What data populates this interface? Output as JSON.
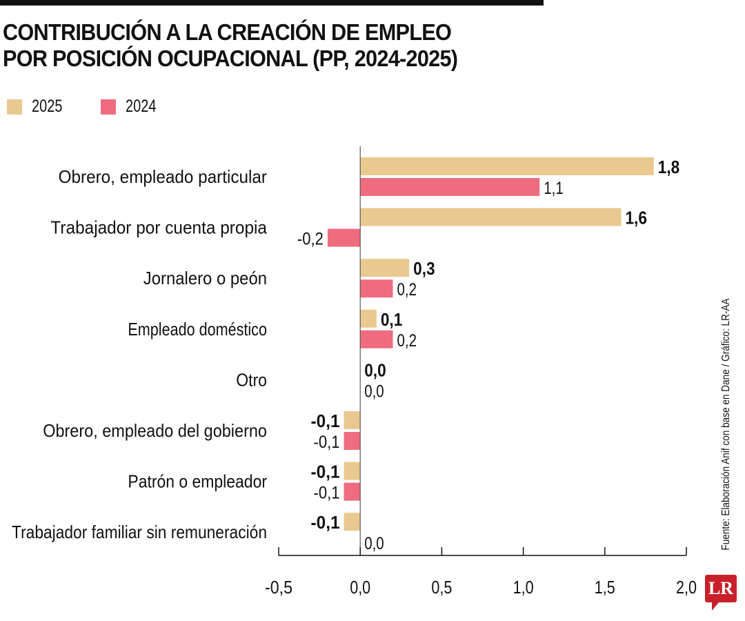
{
  "chart_data": {
    "type": "bar",
    "orientation": "horizontal",
    "title": "CONTRIBUCIÓN A LA CREACIÓN DE EMPLEO POR POSICIÓN OCUPACIONAL (PP, 2024-2025)",
    "title_lines": [
      "CONTRIBUCIÓN A LA CREACIÓN DE EMPLEO",
      "POR POSICIÓN OCUPACIONAL (PP, 2024-2025)"
    ],
    "categories": [
      "Obrero, empleado particular",
      "Trabajador por cuenta propia",
      "Jornalero o peón",
      "Empleado doméstico",
      "Otro",
      "Obrero, empleado del gobierno",
      "Patrón o empleador",
      "Trabajador familiar sin remuneración"
    ],
    "series": [
      {
        "name": "2025",
        "color": "#E9C98F",
        "values": [
          1.8,
          1.6,
          0.3,
          0.1,
          0.0,
          -0.1,
          -0.1,
          -0.1
        ],
        "labels": [
          "1,8",
          "1,6",
          "0,3",
          "0,1",
          "0,0",
          "-0,1",
          "-0,1",
          "-0,1"
        ]
      },
      {
        "name": "2024",
        "color": "#EE6C7E",
        "values": [
          1.1,
          -0.2,
          0.2,
          0.2,
          0.0,
          -0.1,
          -0.1,
          0.0
        ],
        "labels": [
          "1,1",
          "-0,2",
          "0,2",
          "0,2",
          "0,0",
          "-0,1",
          "-0,1",
          "0,0"
        ]
      }
    ],
    "xlim": [
      -0.5,
      2.0
    ],
    "xticks": [
      -0.5,
      0,
      0.5,
      1.0,
      1.5,
      2.0
    ],
    "xtick_labels": [
      "-0,5",
      "0,0",
      "0,5",
      "1,0",
      "1,5",
      "2,0"
    ],
    "xlabel": "",
    "ylabel": "",
    "legend_position": "top-left",
    "grid": false,
    "source": "Fuente: Elaboración Anif con base en Dane / Gráfico: LR-AA"
  },
  "logo": "LR"
}
